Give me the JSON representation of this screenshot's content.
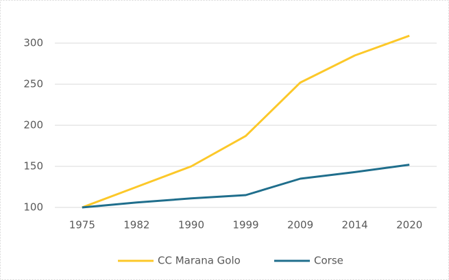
{
  "chart_data": {
    "type": "line",
    "categories": [
      "1975",
      "1982",
      "1990",
      "1999",
      "2009",
      "2014",
      "2020"
    ],
    "series": [
      {
        "name": "CC Marana Golo",
        "color": "#fcc829",
        "values": [
          100,
          125,
          150,
          187,
          252,
          285,
          309
        ]
      },
      {
        "name": "Corse",
        "color": "#1f6e8c",
        "values": [
          100,
          106,
          111,
          115,
          135,
          143,
          152
        ]
      }
    ],
    "ylim": [
      100,
      300
    ],
    "yticks": [
      100,
      150,
      200,
      250,
      300
    ],
    "grid": true,
    "legend": "bottom"
  }
}
